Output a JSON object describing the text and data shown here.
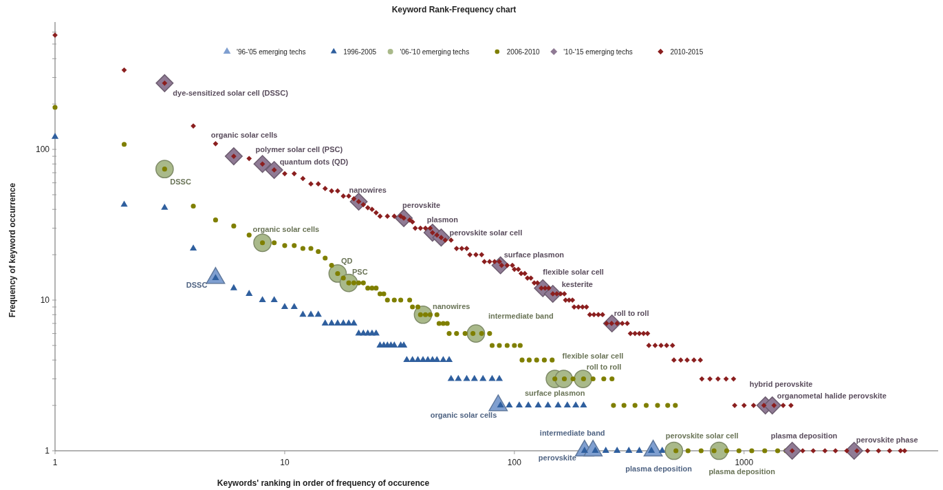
{
  "chart_data": {
    "type": "scatter",
    "title": "Keyword Rank-Frequency chart",
    "xlabel": "Keywords' ranking in order of frequency of occurence",
    "ylabel": "Frequency of keyword occurrence",
    "log": "xy",
    "xlim": [
      1,
      7000
    ],
    "ylim": [
      1,
      700
    ],
    "xticks": [
      1,
      10,
      100,
      1000
    ],
    "yticks": [
      1,
      {
        "value": 2,
        "label": null
      },
      {
        "value": 3,
        "label": null
      },
      {
        "value": 4,
        "label": null
      },
      {
        "value": 5,
        "label": null
      },
      {
        "value": 6,
        "label": null
      },
      {
        "value": 7,
        "label": null
      },
      {
        "value": 8,
        "label": null
      },
      {
        "value": 9,
        "label": null
      },
      10,
      {
        "value": 20,
        "label": null
      },
      {
        "value": 30,
        "label": null
      },
      {
        "value": 40,
        "label": null
      },
      {
        "value": 50,
        "label": null
      },
      {
        "value": 60,
        "label": null
      },
      {
        "value": 70,
        "label": null
      },
      {
        "value": 80,
        "label": null
      },
      {
        "value": 90,
        "label": null
      },
      100,
      {
        "value": 200,
        "label": null
      },
      {
        "value": 300,
        "label": null
      },
      {
        "value": 400,
        "label": null
      },
      {
        "value": 500,
        "label": null
      },
      {
        "value": 600,
        "label": null
      }
    ],
    "grid": false,
    "legend": "top",
    "series": [
      {
        "name": "'96-'05 emerging techs",
        "color": "#7f9fd0",
        "marker": "triangle",
        "x": [
          5,
          85,
          202,
          220,
          402
        ],
        "values": [
          14,
          2,
          1,
          1,
          1
        ],
        "value_labels": [
          "DSSC",
          "organic solar cells",
          "perovskite",
          "intermediate band",
          "plasma deposition"
        ]
      },
      {
        "name": "1996-2005",
        "color": "#2f5f9e",
        "marker": "triangle",
        "x": [
          1,
          2,
          3,
          4,
          5,
          6,
          7,
          8,
          9,
          10,
          11,
          12,
          13,
          14,
          15,
          16,
          17,
          18,
          19,
          20,
          21,
          22,
          23,
          24,
          25,
          26,
          27,
          28,
          29,
          30,
          32,
          33,
          34,
          36,
          38,
          40,
          42,
          44,
          46,
          49,
          52,
          53,
          57,
          62,
          67,
          73,
          80,
          86,
          87,
          95,
          105,
          115,
          127,
          140,
          155,
          170,
          185,
          200,
          202,
          225,
          250,
          280,
          315,
          350,
          395,
          440
        ],
        "values": [
          121,
          43,
          41,
          22,
          14,
          12,
          11,
          10,
          10,
          9,
          9,
          8,
          8,
          8,
          7,
          7,
          7,
          7,
          7,
          7,
          6,
          6,
          6,
          6,
          6,
          5,
          5,
          5,
          5,
          5,
          5,
          5,
          4,
          4,
          4,
          4,
          4,
          4,
          4,
          4,
          4,
          3,
          3,
          3,
          3,
          3,
          3,
          3,
          2,
          2,
          2,
          2,
          2,
          2,
          2,
          2,
          2,
          2,
          1,
          1,
          1,
          1,
          1,
          1,
          1,
          1
        ]
      },
      {
        "name": "'06-'10 emerging techs",
        "color": "#a9b98a",
        "marker": "circle",
        "x": [
          3,
          8,
          17,
          19,
          40,
          68,
          150,
          164,
          199,
          495,
          778
        ],
        "values": [
          74,
          24,
          15,
          13,
          8,
          6,
          3,
          3,
          3,
          1,
          1
        ],
        "value_labels": [
          "DSSC",
          "organic solar cells",
          "QD",
          "PSC",
          "nanowires",
          "intermediate band",
          "surface plasmon",
          "flexible solar cell",
          "roll to roll",
          "perovskite solar cell",
          "plasma deposition"
        ]
      },
      {
        "name": "2006-2010",
        "color": "#7f7f00",
        "marker": "circle",
        "x": [
          1,
          2,
          3,
          4,
          5,
          6,
          7,
          8,
          9,
          10,
          11,
          12,
          13,
          14,
          15,
          16,
          17,
          18,
          19,
          20,
          21,
          22,
          23,
          24,
          25,
          26,
          27,
          28,
          30,
          32,
          35,
          36,
          38,
          39,
          41,
          43,
          46,
          47,
          49,
          51,
          52,
          56,
          61,
          66,
          72,
          78,
          80,
          86,
          93,
          100,
          106,
          108,
          116,
          125,
          135,
          146,
          150,
          165,
          180,
          200,
          220,
          245,
          266,
          270,
          300,
          335,
          375,
          420,
          465,
          502,
          505,
          570,
          650,
          740,
          840,
          950,
          1080,
          1230,
          1400,
          1523
        ],
        "values": [
          190,
          108,
          74,
          42,
          34,
          31,
          27,
          24,
          24,
          23,
          23,
          22,
          22,
          21,
          19,
          17,
          15,
          14,
          13,
          13,
          13,
          13,
          12,
          12,
          12,
          11,
          11,
          10,
          10,
          10,
          10,
          9,
          9,
          8,
          8,
          8,
          8,
          7,
          7,
          7,
          6,
          6,
          6,
          6,
          6,
          6,
          5,
          5,
          5,
          5,
          5,
          4,
          4,
          4,
          4,
          4,
          3,
          3,
          3,
          3,
          3,
          3,
          3,
          2,
          2,
          2,
          2,
          2,
          2,
          2,
          1,
          1,
          1,
          1,
          1,
          1,
          1,
          1,
          1,
          1
        ]
      },
      {
        "name": "'10-'15 emerging techs",
        "color": "#8f7a94",
        "marker": "diamond",
        "x": [
          3,
          6,
          8,
          9,
          21,
          33,
          44,
          48,
          87,
          133,
          147,
          266,
          1238,
          1327,
          1620,
          3014
        ],
        "values": [
          275,
          90,
          80,
          73,
          45,
          35,
          28,
          26,
          17,
          12,
          11,
          7,
          2,
          2,
          1,
          1
        ],
        "value_labels": [
          "dye-sensitized solar cell (DSSC)",
          "organic solar cells",
          "polymer solar cell (PSC)",
          "quantum dots (QD)",
          "nanowires",
          "perovskite",
          "plasmon",
          "perovskite solar cell",
          "surface plasmon",
          "flexible solar cell",
          "kesterite",
          "roll to roll",
          "hybrid perovskite",
          "organometal halide perovskite",
          "plasma deposition",
          "perovskite phase"
        ]
      },
      {
        "name": "2010-2015",
        "color": "#8b1f1f",
        "marker": "diamond",
        "x": [
          1,
          2,
          3,
          4,
          5,
          6,
          7,
          8,
          9,
          10,
          11,
          12,
          13,
          14,
          15,
          16,
          17,
          18,
          19,
          20,
          21,
          22,
          23,
          24,
          25,
          26,
          28,
          30,
          32,
          33,
          35,
          36,
          37,
          39,
          41,
          43,
          44,
          46,
          48,
          50,
          53,
          56,
          59,
          62,
          64,
          68,
          72,
          74,
          78,
          82,
          86,
          88,
          93,
          98,
          100,
          104,
          107,
          111,
          114,
          118,
          122,
          126,
          131,
          136,
          141,
          147,
          153,
          159,
          165,
          167,
          173,
          179,
          182,
          190,
          198,
          206,
          213,
          222,
          232,
          242,
          252,
          265,
          280,
          295,
          310,
          320,
          335,
          350,
          365,
          380,
          385,
          410,
          435,
          460,
          488,
          495,
          530,
          565,
          605,
          645,
          655,
          710,
          770,
          835,
          900,
          910,
          1000,
          1100,
          1220,
          1350,
          1480,
          1600,
          1620,
          1800,
          2000,
          2250,
          2500,
          2800,
          3100,
          3450,
          3850,
          4300,
          4800,
          5000
        ],
        "values": [
          573,
          336,
          275,
          143,
          109,
          90,
          87,
          80,
          73,
          69,
          69,
          64,
          59,
          59,
          55,
          53,
          53,
          49,
          49,
          47,
          45,
          43,
          41,
          40,
          38,
          36,
          36,
          36,
          36,
          35,
          34,
          33,
          30,
          30,
          30,
          30,
          28,
          27,
          26,
          25,
          25,
          22,
          22,
          22,
          20,
          20,
          20,
          18,
          18,
          18,
          18,
          17,
          17,
          17,
          16,
          16,
          15,
          15,
          14,
          14,
          13,
          13,
          12,
          12,
          12,
          11,
          11,
          11,
          11,
          10,
          10,
          10,
          9,
          9,
          9,
          9,
          8,
          8,
          8,
          8,
          7,
          7,
          7,
          7,
          7,
          6,
          6,
          6,
          6,
          6,
          5,
          5,
          5,
          5,
          5,
          4,
          4,
          4,
          4,
          4,
          3,
          3,
          3,
          3,
          3,
          2,
          2,
          2,
          2,
          2,
          2,
          2,
          1,
          1,
          1,
          1,
          1,
          1,
          1,
          1,
          1,
          1,
          1,
          1
        ]
      }
    ]
  }
}
